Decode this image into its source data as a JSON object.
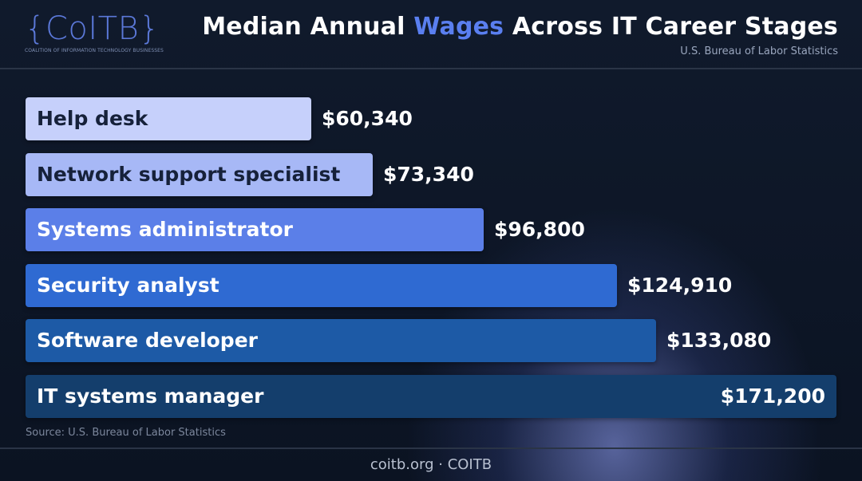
{
  "brand": {
    "logo_text": "{CoITB}",
    "logo_subtitle": "COALITION OF INFORMATION TECHNOLOGY BUSINESSES"
  },
  "header": {
    "title_before": "Median Annual ",
    "title_highlight": "Wages",
    "title_after": " Across IT Career Stages",
    "subtitle": "U.S. Bureau of Labor Statistics"
  },
  "colors": {
    "background": "#0c1424",
    "title_highlight": "#5a7ff0",
    "bar_fills": [
      "#c6d0fb",
      "#a7b8f6",
      "#5b7fe8",
      "#2f6ad2",
      "#1d5aa6",
      "#143e6c"
    ],
    "bar_label_colors": [
      "#16213a",
      "#16213a",
      "#ffffff",
      "#ffffff",
      "#ffffff",
      "#ffffff"
    ]
  },
  "chart_data": {
    "type": "bar",
    "orientation": "horizontal",
    "categories": [
      "Help desk",
      "Network support specialist",
      "Systems administrator",
      "Security analyst",
      "Software developer",
      "IT systems manager"
    ],
    "values": [
      60340,
      73340,
      96800,
      124910,
      133080,
      171200
    ],
    "value_labels": [
      "$60,340",
      "$73,340",
      "$96,800",
      "$124,910",
      "$133,080",
      "$171,200"
    ],
    "xlim": [
      0,
      171200
    ],
    "grid": false,
    "source": "Source: U.S. Bureau of Labor Statistics"
  },
  "footer": {
    "text": "coitb.org · COITB"
  }
}
